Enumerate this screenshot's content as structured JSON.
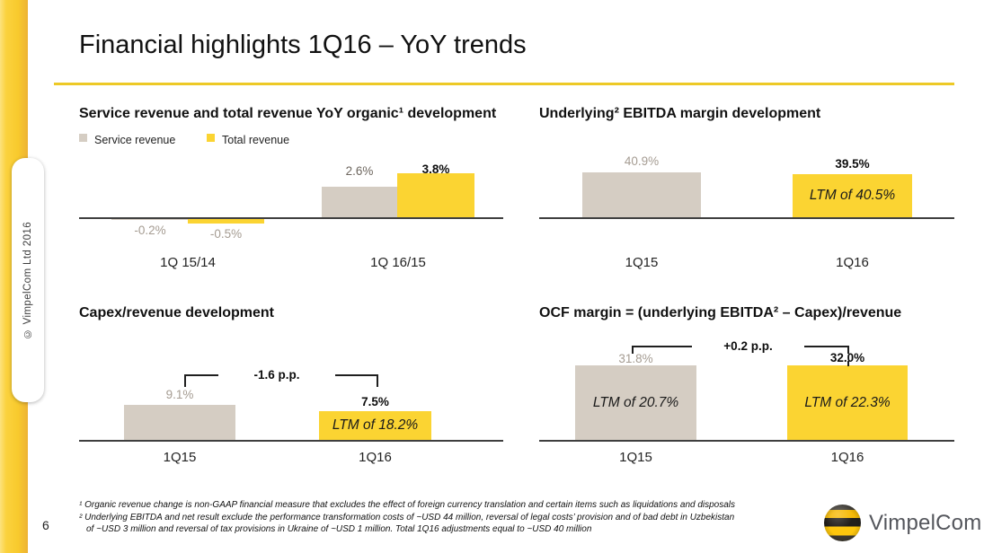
{
  "slide": {
    "title": "Financial highlights 1Q16 – YoY trends",
    "page_number": "6",
    "copyright": "© VimpelCom Ltd 2016",
    "brand": "VimpelCom"
  },
  "colors": {
    "accent_rule": "#EDC926",
    "rail_yellow": "#F8CA2D",
    "bar_yellow": "#FBD432",
    "bar_gray": "#D5CDC3",
    "label_gray": "#A59C92",
    "axis": "#3F3F3F",
    "brand_gray": "#54565C"
  },
  "chart_data": [
    {
      "id": "revenue-yoy",
      "type": "grouped-bar",
      "title": "Service revenue and total revenue YoY organic¹ development",
      "unit": "%",
      "legend_position": "top-left",
      "categories": [
        "1Q 15/14",
        "1Q 16/15"
      ],
      "series": [
        {
          "name": "Service revenue",
          "color": "gray",
          "values": [
            -0.2,
            2.6
          ],
          "labels": [
            "-0.2%",
            "2.6%"
          ]
        },
        {
          "name": "Total revenue",
          "color": "yellow",
          "values": [
            -0.5,
            3.8
          ],
          "labels": [
            "-0.5%",
            "3.8%"
          ]
        }
      ],
      "ylim": [
        -1,
        4.5
      ],
      "grid": false
    },
    {
      "id": "ebitda-margin",
      "type": "bar",
      "title": "Underlying² EBITDA margin development",
      "unit": "%",
      "categories": [
        "1Q15",
        "1Q16"
      ],
      "bars": [
        {
          "category": "1Q15",
          "value": 40.9,
          "label": "40.9%",
          "color": "gray",
          "inner_label": ""
        },
        {
          "category": "1Q16",
          "value": 39.5,
          "label": "39.5%",
          "color": "yellow",
          "inner_label": "LTM of 40.5%"
        }
      ],
      "ylim": [
        0,
        45
      ],
      "grid": false
    },
    {
      "id": "capex-revenue",
      "type": "bar",
      "title": "Capex/revenue development",
      "unit": "%",
      "categories": [
        "1Q15",
        "1Q16"
      ],
      "delta_annotation": "-1.6 p.p.",
      "bars": [
        {
          "category": "1Q15",
          "value": 9.1,
          "label": "9.1%",
          "color": "gray",
          "inner_label": ""
        },
        {
          "category": "1Q16",
          "value": 7.5,
          "label": "7.5%",
          "color": "yellow",
          "inner_label": "LTM of 18.2%"
        }
      ],
      "ylim": [
        0,
        12
      ],
      "grid": false
    },
    {
      "id": "ocf-margin",
      "type": "bar",
      "title": "OCF margin = (underlying EBITDA² – Capex)/revenue",
      "unit": "%",
      "categories": [
        "1Q15",
        "1Q16"
      ],
      "delta_annotation": "+0.2 p.p.",
      "bars": [
        {
          "category": "1Q15",
          "value": 31.8,
          "label": "31.8%",
          "color": "gray",
          "inner_label": "LTM of 20.7%"
        },
        {
          "category": "1Q16",
          "value": 32.0,
          "label": "32.0%",
          "color": "yellow",
          "inner_label": "LTM of 22.3%"
        }
      ],
      "ylim": [
        0,
        36
      ],
      "grid": false
    }
  ],
  "footnotes": [
    "¹ Organic revenue change is non-GAAP financial measure that excludes the effect of foreign currency translation and certain items such as liquidations and disposals",
    "² Underlying EBITDA and net result exclude the performance transformation costs of ~USD 44 million, reversal of legal costs’ provision and of bad debt in Uzbekistan of ~USD 3 million and reversal of tax provisions in Ukraine of ~USD 1 million. Total 1Q16 adjustments equal to ~USD 40 million"
  ]
}
